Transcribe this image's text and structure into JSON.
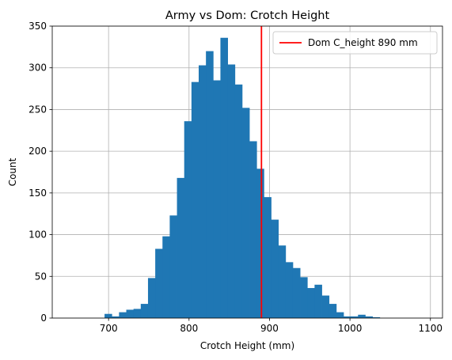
{
  "chart_data": {
    "type": "bar",
    "title": "Army vs Dom: Crotch Height",
    "xlabel": "Crotch Height (mm)",
    "ylabel": "Count",
    "xlim": [
      630,
      1115
    ],
    "ylim": [
      0,
      350
    ],
    "xticks": [
      700,
      800,
      900,
      1000,
      1100
    ],
    "yticks": [
      0,
      50,
      100,
      150,
      200,
      250,
      300,
      350
    ],
    "grid": true,
    "bar_color": "#1f77b4",
    "bin_start": 650,
    "bin_width": 9.0,
    "counts": [
      0,
      0,
      0,
      0,
      0,
      5,
      2,
      7,
      10,
      11,
      17,
      48,
      83,
      98,
      123,
      168,
      236,
      283,
      303,
      320,
      285,
      336,
      304,
      280,
      252,
      212,
      179,
      145,
      118,
      87,
      67,
      60,
      49,
      36,
      40,
      27,
      17,
      7,
      2,
      2,
      4,
      2,
      1,
      0,
      0,
      0,
      0,
      0,
      0,
      0
    ],
    "reference_line": {
      "x": 890,
      "color": "#ff0000",
      "label": "Dom C_height 890 mm"
    },
    "legend": {
      "position": "top-right",
      "entries": [
        "Dom C_height 890 mm"
      ]
    }
  }
}
